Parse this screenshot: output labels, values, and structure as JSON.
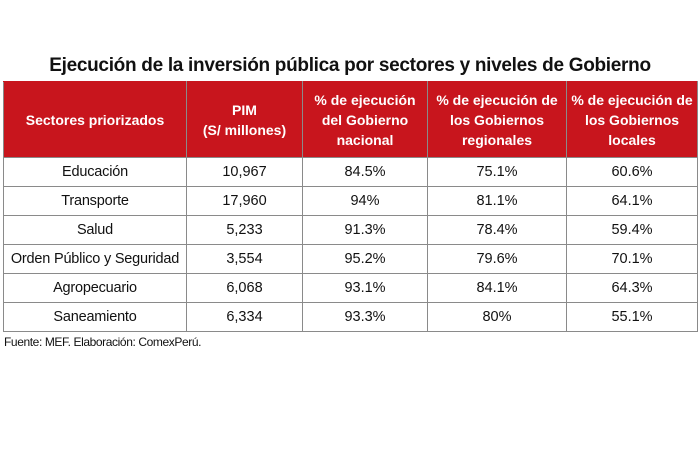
{
  "title": "Ejecución de la inversión pública por sectores y niveles de Gobierno",
  "table": {
    "headers": [
      {
        "lines": [
          "Sectores priorizados"
        ]
      },
      {
        "lines": [
          "PIM",
          "(S/ millones)"
        ]
      },
      {
        "lines": [
          "% de ejecución",
          "del Gobierno",
          "nacional"
        ]
      },
      {
        "lines": [
          "% de ejecución de",
          "los Gobiernos",
          "regionales"
        ]
      },
      {
        "lines": [
          "% de ejecución de",
          "los Gobiernos",
          "locales"
        ]
      }
    ],
    "rows": [
      {
        "sector": "Educación",
        "pim": "10,967",
        "nacional": "84.5%",
        "regionales": "75.1%",
        "locales": "60.6%"
      },
      {
        "sector": "Transporte",
        "pim": "17,960",
        "nacional": "94%",
        "regionales": "81.1%",
        "locales": "64.1%"
      },
      {
        "sector": "Salud",
        "pim": "5,233",
        "nacional": "91.3%",
        "regionales": "78.4%",
        "locales": "59.4%"
      },
      {
        "sector": "Orden Público y Seguridad",
        "pim": "3,554",
        "nacional": "95.2%",
        "regionales": "79.6%",
        "locales": "70.1%"
      },
      {
        "sector": "Agropecuario",
        "pim": "6,068",
        "nacional": "93.1%",
        "regionales": "84.1%",
        "locales": "64.3%"
      },
      {
        "sector": "Saneamiento",
        "pim": "6,334",
        "nacional": "93.3%",
        "regionales": "80%",
        "locales": "55.1%"
      }
    ]
  },
  "source": "Fuente: MEF. Elaboración: ComexPerú.",
  "colors": {
    "header_background": "#c8151d",
    "header_text": "#ffffff",
    "grid_lines": "#8a8a8a"
  }
}
